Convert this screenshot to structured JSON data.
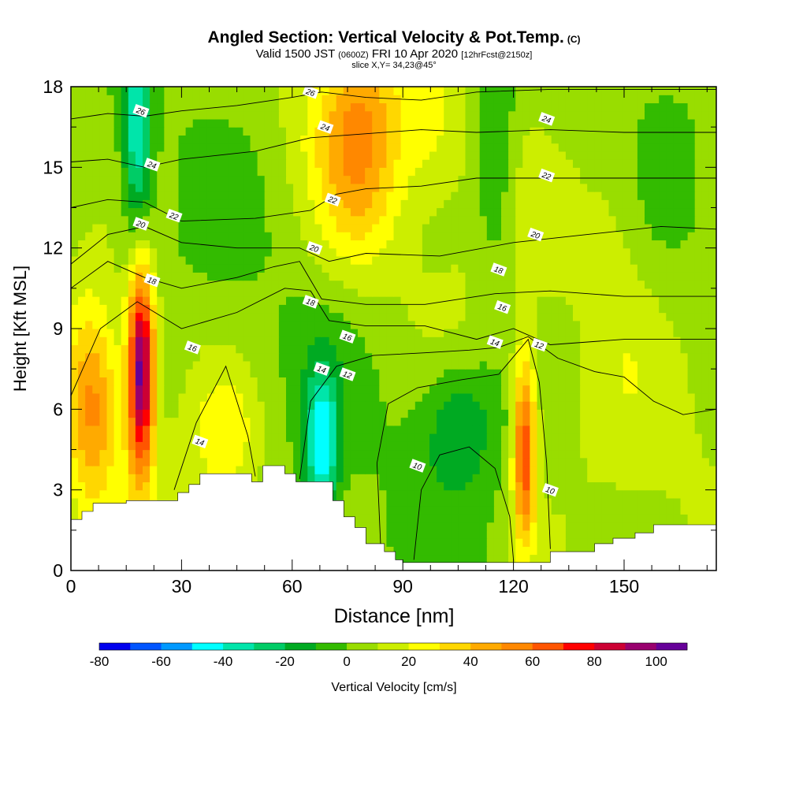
{
  "title": "Angled Section: Vertical Velocity & Pot.Temp.",
  "title_mark": "(C)",
  "valid_prefix": "Valid 1500 JST",
  "valid_zulu": "(0600Z)",
  "valid_date": "FRI 10 Apr 2020",
  "valid_fcst": "[12hrFcst@2150z]",
  "slice": "slice X,Y= 34,23@45°",
  "colorbar_label": "Vertical Velocity [cm/s]",
  "chart_data": {
    "type": "heatmap",
    "xlabel": "Distance [nm]",
    "ylabel": "Height [Kft MSL]",
    "xlim": [
      0,
      175
    ],
    "ylim": [
      0,
      18
    ],
    "x_ticks": [
      0,
      30,
      60,
      90,
      120,
      150
    ],
    "y_ticks": [
      0,
      3,
      6,
      9,
      12,
      15,
      18
    ],
    "colorbar": {
      "levels": [
        -80,
        -70,
        -60,
        -50,
        -40,
        -30,
        -20,
        -10,
        0,
        10,
        20,
        30,
        40,
        50,
        60,
        70,
        80,
        90,
        100,
        110
      ],
      "tick_labels": [
        -80,
        -60,
        -40,
        -20,
        0,
        20,
        40,
        60,
        80,
        100
      ],
      "colors": [
        "#0000ee",
        "#0055ff",
        "#0099ff",
        "#00ffff",
        "#00e5aa",
        "#00cc66",
        "#00aa22",
        "#33bb00",
        "#99dd00",
        "#ccee00",
        "#ffff00",
        "#ffd700",
        "#ffaa00",
        "#ff8800",
        "#ff5500",
        "#ff0000",
        "#cc0033",
        "#99006e",
        "#660099"
      ]
    },
    "terrain": [
      [
        0,
        1.9
      ],
      [
        3,
        1.9
      ],
      [
        3,
        2.2
      ],
      [
        6,
        2.2
      ],
      [
        6,
        2.5
      ],
      [
        15,
        2.5
      ],
      [
        15,
        2.6
      ],
      [
        29,
        2.6
      ],
      [
        29,
        2.9
      ],
      [
        32,
        2.9
      ],
      [
        32,
        3.2
      ],
      [
        35,
        3.2
      ],
      [
        35,
        3.6
      ],
      [
        49,
        3.6
      ],
      [
        49,
        3.3
      ],
      [
        52,
        3.3
      ],
      [
        52,
        3.9
      ],
      [
        58,
        3.9
      ],
      [
        58,
        3.6
      ],
      [
        61,
        3.6
      ],
      [
        61,
        3.3
      ],
      [
        71,
        3.3
      ],
      [
        71,
        2.6
      ],
      [
        74,
        2.6
      ],
      [
        74,
        2.0
      ],
      [
        77,
        2.0
      ],
      [
        77,
        1.6
      ],
      [
        80,
        1.6
      ],
      [
        80,
        1.0
      ],
      [
        85,
        1.0
      ],
      [
        85,
        0.7
      ],
      [
        88,
        0.7
      ],
      [
        88,
        0.4
      ],
      [
        90,
        0.4
      ],
      [
        90,
        0.3
      ],
      [
        130,
        0.3
      ],
      [
        130,
        0.7
      ],
      [
        142,
        0.7
      ],
      [
        142,
        1.0
      ],
      [
        147,
        1.0
      ],
      [
        147,
        1.2
      ],
      [
        153,
        1.2
      ],
      [
        153,
        1.4
      ],
      [
        158,
        1.4
      ],
      [
        158,
        1.7
      ],
      [
        175,
        1.7
      ]
    ],
    "velocity_features": [
      {
        "x": 19,
        "y": 7.5,
        "sx": 2.6,
        "sy": 2.8,
        "value": 100
      },
      {
        "x": 6,
        "y": 6.3,
        "sx": 5,
        "sy": 2.6,
        "value": 45
      },
      {
        "x": 18,
        "y": 16.3,
        "sx": 2.8,
        "sy": 3,
        "value": -45
      },
      {
        "x": 68,
        "y": 4.5,
        "sx": 3.2,
        "sy": 2,
        "value": -50
      },
      {
        "x": 105,
        "y": 5.5,
        "sx": 8,
        "sy": 1.8,
        "value": -25
      },
      {
        "x": 123,
        "y": 4.5,
        "sx": 2.2,
        "sy": 2.5,
        "value": 65
      },
      {
        "x": 78,
        "y": 16,
        "sx": 8,
        "sy": 3,
        "value": 40
      },
      {
        "x": 42,
        "y": 5,
        "sx": 6,
        "sy": 1.6,
        "value": 18
      },
      {
        "x": 115,
        "y": 15,
        "sx": 4,
        "sy": 3.5,
        "value": -18
      },
      {
        "x": 148,
        "y": 14,
        "sx": 6,
        "sy": 4,
        "value": 10
      },
      {
        "x": 98,
        "y": 16.5,
        "sx": 7,
        "sy": 2,
        "value": 15
      }
    ],
    "theta_contours": [
      {
        "label": "10",
        "points": [
          [
            93,
            0.4
          ],
          [
            95,
            3
          ],
          [
            100,
            4.3
          ],
          [
            108,
            4.6
          ],
          [
            115,
            3.8
          ],
          [
            119,
            2
          ],
          [
            120,
            0.4
          ]
        ],
        "label_at": [
          [
            94,
            3.9
          ],
          [
            130,
            3
          ]
        ]
      },
      {
        "label": "12",
        "points": [
          [
            84,
            0.9
          ],
          [
            83,
            4
          ],
          [
            86,
            6.2
          ],
          [
            94,
            6.8
          ],
          [
            106,
            7.1
          ],
          [
            116,
            7.3
          ],
          [
            124,
            8.6
          ],
          [
            127,
            7
          ],
          [
            129,
            4
          ],
          [
            130,
            0.8
          ]
        ],
        "label_at": [
          [
            75,
            7.3
          ],
          [
            127,
            8.4
          ]
        ]
      },
      {
        "label": "14",
        "points": [
          [
            28,
            3
          ],
          [
            34,
            5.5
          ],
          [
            42,
            7.6
          ],
          [
            48,
            5
          ],
          [
            50,
            3.5
          ]
        ],
        "label_at": [
          [
            35,
            4.8
          ]
        ]
      },
      {
        "label": "14",
        "points": [
          [
            62,
            3.4
          ],
          [
            65,
            6.3
          ],
          [
            72,
            7.6
          ],
          [
            82,
            8
          ],
          [
            96,
            8.1
          ],
          [
            108,
            8.2
          ],
          [
            116,
            8.3
          ],
          [
            124,
            8.7
          ],
          [
            132,
            7.9
          ],
          [
            142,
            7.4
          ],
          [
            150,
            7.2
          ],
          [
            158,
            6.3
          ],
          [
            166,
            5.8
          ],
          [
            175,
            6
          ]
        ],
        "label_at": [
          [
            68,
            7.5
          ],
          [
            115,
            8.5
          ]
        ]
      },
      {
        "label": "16",
        "points": [
          [
            0,
            6.5
          ],
          [
            8,
            9
          ],
          [
            18,
            10
          ],
          [
            30,
            9
          ],
          [
            45,
            9.6
          ],
          [
            58,
            10.5
          ],
          [
            65,
            10.4
          ],
          [
            70,
            9.3
          ],
          [
            80,
            9.1
          ],
          [
            96,
            9.1
          ],
          [
            110,
            8.6
          ],
          [
            120,
            9
          ],
          [
            130,
            8.4
          ],
          [
            150,
            8.6
          ],
          [
            175,
            8.6
          ]
        ],
        "label_at": [
          [
            33,
            8.3
          ],
          [
            75,
            8.7
          ],
          [
            117,
            9.8
          ]
        ]
      },
      {
        "label": "18",
        "points": [
          [
            0,
            10.5
          ],
          [
            10,
            11.5
          ],
          [
            20,
            10.9
          ],
          [
            30,
            10.5
          ],
          [
            45,
            10.9
          ],
          [
            55,
            11.3
          ],
          [
            62,
            11.5
          ],
          [
            68,
            10.1
          ],
          [
            80,
            9.9
          ],
          [
            96,
            9.9
          ],
          [
            115,
            10.3
          ],
          [
            130,
            10.4
          ],
          [
            150,
            10.2
          ],
          [
            175,
            10.2
          ]
        ],
        "label_at": [
          [
            22,
            10.8
          ],
          [
            65,
            10
          ],
          [
            116,
            11.2
          ]
        ]
      },
      {
        "label": "20",
        "points": [
          [
            0,
            11.4
          ],
          [
            10,
            12.5
          ],
          [
            20,
            12.8
          ],
          [
            30,
            12.2
          ],
          [
            45,
            12
          ],
          [
            62,
            12
          ],
          [
            70,
            11.5
          ],
          [
            80,
            11.8
          ],
          [
            100,
            11.7
          ],
          [
            120,
            12.2
          ],
          [
            140,
            12.5
          ],
          [
            160,
            12.8
          ],
          [
            175,
            12.7
          ]
        ],
        "label_at": [
          [
            19,
            12.9
          ],
          [
            66,
            12
          ],
          [
            126,
            12.5
          ]
        ]
      },
      {
        "label": "22",
        "points": [
          [
            0,
            13.5
          ],
          [
            10,
            13.8
          ],
          [
            20,
            13.7
          ],
          [
            30,
            13
          ],
          [
            50,
            13.1
          ],
          [
            65,
            13.4
          ],
          [
            72,
            14
          ],
          [
            80,
            14.2
          ],
          [
            95,
            14.3
          ],
          [
            110,
            14.6
          ],
          [
            125,
            14.6
          ],
          [
            145,
            14.6
          ],
          [
            175,
            14.6
          ]
        ],
        "label_at": [
          [
            28,
            13.2
          ],
          [
            71,
            13.8
          ],
          [
            129,
            14.7
          ]
        ]
      },
      {
        "label": "24",
        "points": [
          [
            0,
            15.2
          ],
          [
            10,
            15.3
          ],
          [
            20,
            15
          ],
          [
            30,
            15.3
          ],
          [
            50,
            15.6
          ],
          [
            65,
            16.1
          ],
          [
            75,
            16.2
          ],
          [
            95,
            16.4
          ],
          [
            110,
            16.3
          ],
          [
            130,
            16.4
          ],
          [
            150,
            16.3
          ],
          [
            175,
            16.3
          ]
        ],
        "label_at": [
          [
            22,
            15.1
          ],
          [
            69,
            16.5
          ],
          [
            129,
            16.8
          ]
        ]
      },
      {
        "label": "26",
        "points": [
          [
            0,
            16.8
          ],
          [
            10,
            17
          ],
          [
            20,
            16.9
          ],
          [
            30,
            17.1
          ],
          [
            45,
            17.3
          ],
          [
            60,
            17.6
          ],
          [
            68,
            17.8
          ],
          [
            80,
            17.6
          ],
          [
            95,
            17.5
          ],
          [
            110,
            17.8
          ],
          [
            130,
            17.9
          ],
          [
            150,
            17.9
          ],
          [
            175,
            17.9
          ]
        ],
        "label_at": [
          [
            19,
            17.1
          ],
          [
            65,
            17.8
          ]
        ]
      }
    ]
  }
}
